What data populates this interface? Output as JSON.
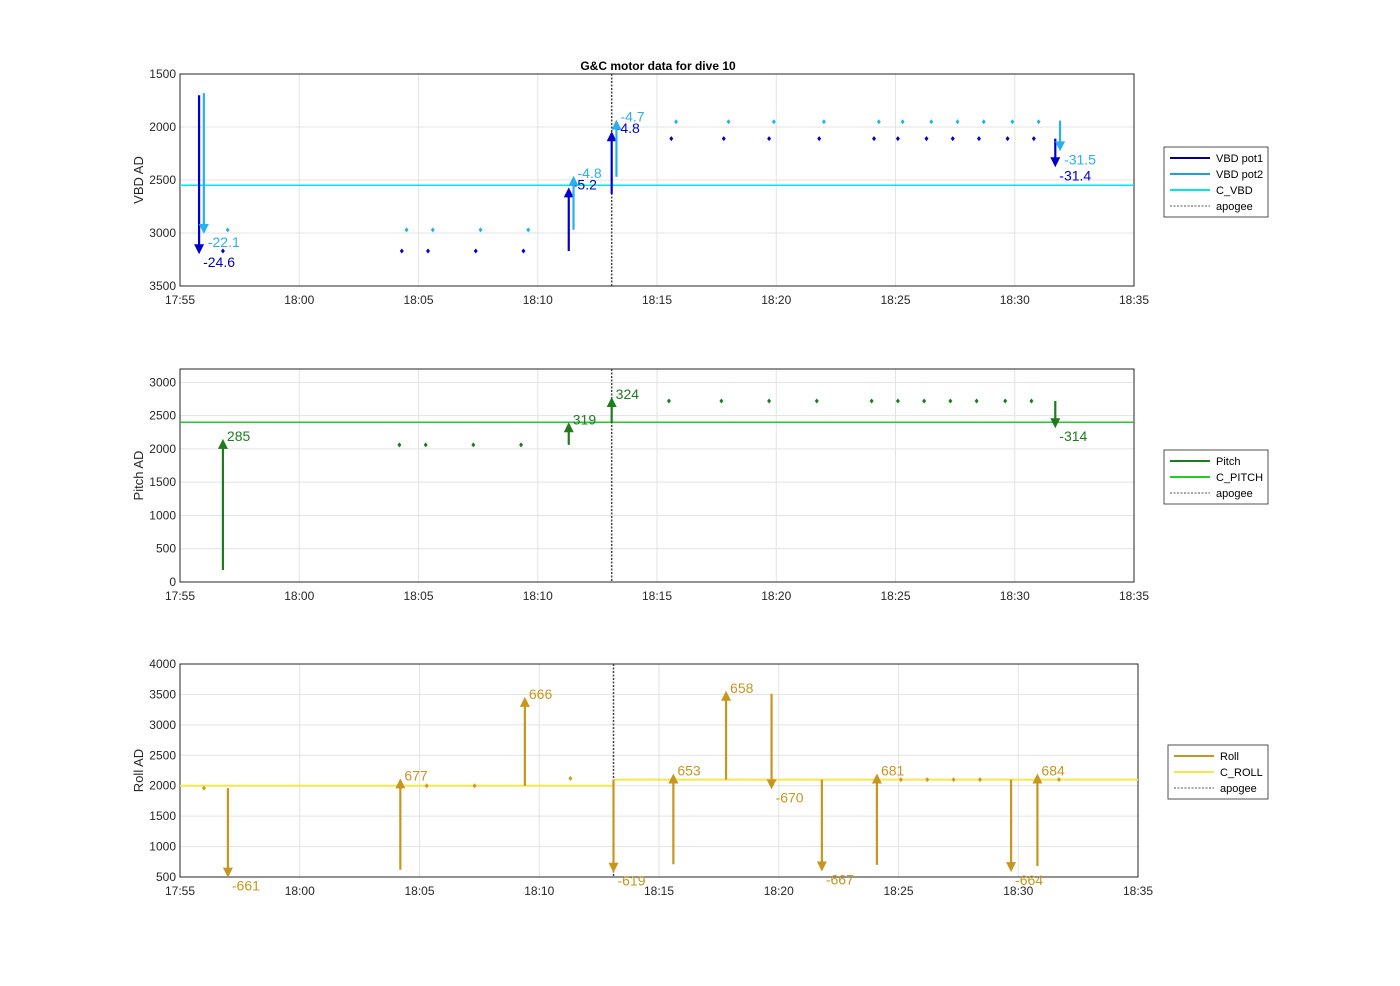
{
  "figure": {
    "title": "G&C motor data for dive 10"
  },
  "chart_data": [
    {
      "type": "scatter",
      "ylabel": "VBD AD",
      "ylim": [
        1500,
        3500
      ],
      "y_reversed": true,
      "yticks": [
        "1500",
        "2000",
        "2500",
        "3000",
        "3500"
      ],
      "xlim": [
        "17:55",
        "18:35"
      ],
      "xticks": [
        "17:55",
        "18:00",
        "18:05",
        "18:10",
        "18:15",
        "18:20",
        "18:25",
        "18:30",
        "18:35"
      ],
      "grid": true,
      "legend_position": "right",
      "legend": [
        {
          "label": "VBD pot1",
          "color": "#00008b",
          "style": "solid"
        },
        {
          "label": "VBD pot2",
          "color": "#1e9fdc",
          "style": "solid"
        },
        {
          "label": "C_VBD",
          "color": "#00e5ee",
          "style": "solid"
        },
        {
          "label": "apogee",
          "color": "#555555",
          "style": "dashed"
        }
      ],
      "reference_line": {
        "name": "C_VBD",
        "y": 2550
      },
      "apogee_x": "18:13.1",
      "series": [
        {
          "name": "VBD pot1",
          "color": "#0000cc",
          "x": [
            "17:56.8",
            "18:04.3",
            "18:05.4",
            "18:07.4",
            "18:09.4",
            "18:15.6",
            "18:17.8",
            "18:19.7",
            "18:21.8",
            "18:24.1",
            "18:25.1",
            "18:26.3",
            "18:27.4",
            "18:28.5",
            "18:29.7",
            "18:30.8"
          ],
          "y": [
            3170,
            3170,
            3170,
            3170,
            3170,
            2110,
            2110,
            2110,
            2110,
            2110,
            2110,
            2110,
            2110,
            2110,
            2110,
            2110
          ]
        },
        {
          "name": "VBD pot2",
          "color": "#2ab0ea",
          "x": [
            "17:57.0",
            "18:04.5",
            "18:05.6",
            "18:07.6",
            "18:09.6",
            "18:15.8",
            "18:18.0",
            "18:19.9",
            "18:22.0",
            "18:24.3",
            "18:25.3",
            "18:26.5",
            "18:27.6",
            "18:28.7",
            "18:29.9",
            "18:31.0"
          ],
          "y": [
            2970,
            2970,
            2970,
            2970,
            2970,
            1950,
            1950,
            1950,
            1950,
            1950,
            1950,
            1950,
            1950,
            1950,
            1950,
            1950
          ]
        }
      ],
      "arrows": [
        {
          "x": "17:55.8",
          "y_start": 1700,
          "y_end": 3200,
          "label": "-24.6",
          "color": "#0000cc"
        },
        {
          "x": "17:56.0",
          "y_start": 1680,
          "y_end": 3010,
          "label": "-22.1",
          "color": "#2ab0ea"
        },
        {
          "x": "18:11.3",
          "y_start": 3170,
          "y_end": 2570,
          "label": "-5.2",
          "color": "#0000cc"
        },
        {
          "x": "18:11.5",
          "y_start": 2970,
          "y_end": 2460,
          "label": "-4.8",
          "color": "#2ab0ea"
        },
        {
          "x": "18:13.1",
          "y_start": 2630,
          "y_end": 2040,
          "label": "-4.8",
          "color": "#0000cc"
        },
        {
          "x": "18:13.3",
          "y_start": 2470,
          "y_end": 1930,
          "label": "-4.7",
          "color": "#2ab0ea"
        },
        {
          "x": "18:31.7",
          "y_start": 2110,
          "y_end": 2380,
          "label": "-31.4",
          "color": "#0000cc"
        },
        {
          "x": "18:31.9",
          "y_start": 1940,
          "y_end": 2230,
          "label": "-31.5",
          "color": "#2ab0ea"
        }
      ]
    },
    {
      "type": "scatter",
      "ylabel": "Pitch AD",
      "ylim": [
        0,
        3200
      ],
      "yticks": [
        "0",
        "500",
        "1000",
        "1500",
        "2000",
        "2500",
        "3000"
      ],
      "xlim": [
        "17:55",
        "18:35"
      ],
      "xticks": [
        "17:55",
        "18:00",
        "18:05",
        "18:10",
        "18:15",
        "18:20",
        "18:25",
        "18:30",
        "18:35"
      ],
      "grid": true,
      "legend_position": "right",
      "legend": [
        {
          "label": "Pitch",
          "color": "#1e7b1e",
          "style": "solid"
        },
        {
          "label": "C_PITCH",
          "color": "#22cc22",
          "style": "solid"
        },
        {
          "label": "apogee",
          "color": "#555555",
          "style": "dashed"
        }
      ],
      "reference_line": {
        "name": "C_PITCH",
        "y": 2400
      },
      "apogee_x": "18:13.1",
      "series": [
        {
          "name": "Pitch",
          "color": "#1e7b1e",
          "x": [
            "18:04.2",
            "18:05.3",
            "18:07.3",
            "18:09.3",
            "18:15.5",
            "18:17.7",
            "18:19.7",
            "18:21.7",
            "18:24.0",
            "18:25.1",
            "18:26.2",
            "18:27.3",
            "18:28.4",
            "18:29.6",
            "18:30.7"
          ],
          "y": [
            2060,
            2060,
            2060,
            2060,
            2720,
            2720,
            2720,
            2720,
            2720,
            2720,
            2720,
            2720,
            2720,
            2720,
            2720
          ]
        }
      ],
      "arrows": [
        {
          "x": "17:56.8",
          "y_start": 180,
          "y_end": 2150,
          "label": "285",
          "color": "#1e7b1e"
        },
        {
          "x": "18:11.3",
          "y_start": 2060,
          "y_end": 2400,
          "label": "319",
          "color": "#1e7b1e"
        },
        {
          "x": "18:13.1",
          "y_start": 2400,
          "y_end": 2780,
          "label": "324",
          "color": "#1e7b1e"
        },
        {
          "x": "18:31.7",
          "y_start": 2720,
          "y_end": 2310,
          "label": "-314",
          "color": "#1e7b1e"
        }
      ]
    },
    {
      "type": "scatter",
      "ylabel": "Roll AD",
      "ylim": [
        500,
        4000
      ],
      "yticks": [
        "500",
        "1000",
        "1500",
        "2000",
        "2500",
        "3000",
        "3500",
        "4000"
      ],
      "xlim": [
        "17:55",
        "18:35"
      ],
      "xticks": [
        "17:55",
        "18:00",
        "18:05",
        "18:10",
        "18:15",
        "18:20",
        "18:25",
        "18:30",
        "18:35"
      ],
      "grid": true,
      "legend_position": "right",
      "legend": [
        {
          "label": "Roll",
          "color": "#c8961e",
          "style": "solid"
        },
        {
          "label": "C_ROLL",
          "color": "#f5e84a",
          "style": "solid"
        },
        {
          "label": "apogee",
          "color": "#555555",
          "style": "dashed"
        }
      ],
      "reference_line": {
        "name": "C_ROLL",
        "segments": [
          {
            "x": [
              "17:55",
              "18:13.1"
            ],
            "y": 2000
          },
          {
            "x": [
              "18:13.1",
              "18:35"
            ],
            "y": 2100
          }
        ]
      },
      "apogee_x": "18:13.1",
      "series": [
        {
          "name": "Roll",
          "color": "#d29a1e",
          "x": [
            "17:56.0",
            "18:05.3",
            "18:07.3",
            "18:11.3",
            "18:25.1",
            "18:26.2",
            "18:27.3",
            "18:28.4",
            "18:31.7"
          ],
          "y": [
            1960,
            2000,
            2000,
            2120,
            2100,
            2100,
            2100,
            2100,
            2100
          ]
        }
      ],
      "arrows": [
        {
          "x": "17:57.0",
          "y_start": 1960,
          "y_end": 490,
          "label": "-661",
          "color": "#c8961e"
        },
        {
          "x": "18:04.2",
          "y_start": 620,
          "y_end": 2120,
          "label": "677",
          "color": "#c8961e"
        },
        {
          "x": "18:09.4",
          "y_start": 2000,
          "y_end": 3460,
          "label": "666",
          "color": "#c8961e"
        },
        {
          "x": "18:13.1",
          "y_start": 2100,
          "y_end": 570,
          "label": "-619",
          "color": "#c8961e"
        },
        {
          "x": "18:15.6",
          "y_start": 710,
          "y_end": 2200,
          "label": "653",
          "color": "#c8961e"
        },
        {
          "x": "18:17.8",
          "y_start": 2100,
          "y_end": 3560,
          "label": "658",
          "color": "#c8961e"
        },
        {
          "x": "18:19.7",
          "y_start": 3510,
          "y_end": 1940,
          "label": "-670",
          "color": "#c8961e"
        },
        {
          "x": "18:21.8",
          "y_start": 2100,
          "y_end": 590,
          "label": "-667",
          "color": "#c8961e"
        },
        {
          "x": "18:24.1",
          "y_start": 700,
          "y_end": 2200,
          "label": "681",
          "color": "#c8961e"
        },
        {
          "x": "18:29.7",
          "y_start": 2100,
          "y_end": 580,
          "label": "-664",
          "color": "#c8961e"
        },
        {
          "x": "18:30.8",
          "y_start": 680,
          "y_end": 2200,
          "label": "684",
          "color": "#c8961e"
        }
      ]
    }
  ]
}
